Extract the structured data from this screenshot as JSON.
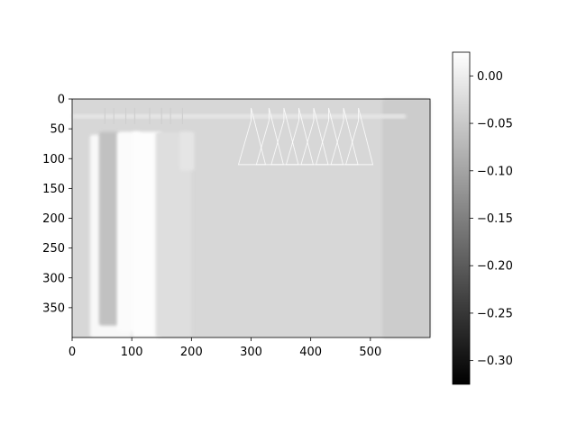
{
  "chart_data": {
    "type": "heatmap",
    "title": "",
    "xlabel": "",
    "ylabel": "",
    "colormap": "gray",
    "xlim": [
      0,
      600
    ],
    "ylim": [
      400,
      0
    ],
    "x_ticks": [
      0,
      100,
      200,
      300,
      400,
      500
    ],
    "y_ticks": [
      0,
      50,
      100,
      150,
      200,
      250,
      300,
      350
    ],
    "colorbar": {
      "range": [
        -0.325,
        0.025
      ],
      "ticks": [
        0.0,
        -0.05,
        -0.1,
        -0.15,
        -0.2,
        -0.25,
        -0.3
      ],
      "tick_labels": [
        "0.00",
        "−0.05",
        "−0.10",
        "−0.15",
        "−0.20",
        "−0.25",
        "−0.30"
      ]
    }
  },
  "image": {
    "subject": "closet with hanging clothes and wire hangers on a rail",
    "background_value": -0.03,
    "objects": [
      {
        "name": "clothing",
        "x": [
          30,
          100
        ],
        "y": [
          60,
          400
        ],
        "value": 0.015
      },
      {
        "name": "clothing",
        "x": [
          45,
          80
        ],
        "y": [
          55,
          380
        ],
        "value": -0.06
      },
      {
        "name": "clothing",
        "x": [
          75,
          115
        ],
        "y": [
          55,
          390
        ],
        "value": 0.02
      },
      {
        "name": "clothing",
        "x": [
          100,
          150
        ],
        "y": [
          55,
          400
        ],
        "value": 0.022
      },
      {
        "name": "clothing",
        "x": [
          140,
          200
        ],
        "y": [
          55,
          400
        ],
        "value": -0.02
      },
      {
        "name": "clothing",
        "x": [
          180,
          205
        ],
        "y": [
          55,
          120
        ],
        "value": -0.01
      },
      {
        "name": "wall-panel",
        "x": [
          520,
          600
        ],
        "y": [
          0,
          400
        ],
        "value": -0.045
      },
      {
        "name": "rail",
        "x": [
          0,
          560
        ],
        "y": [
          25,
          33
        ],
        "value": -0.01
      }
    ]
  }
}
